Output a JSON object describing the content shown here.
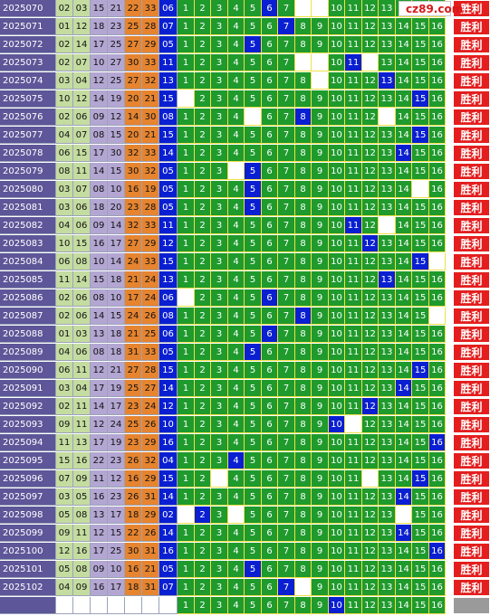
{
  "brand": {
    "logo_text": "cz89.com",
    "logo_color": "#d81818"
  },
  "result_label": "胜利",
  "colors": {
    "period_bg": "#5d5698",
    "hit_blue": "#0a1fd1",
    "green": "#1f9a2d",
    "orange": "#e6842f",
    "lavender": "#b3a6d2",
    "lightgreen": "#c4dca0",
    "result_red": "#e41e1e"
  },
  "grid_numbers": [
    "1",
    "2",
    "3",
    "4",
    "5",
    "6",
    "7",
    "8",
    "9",
    "10",
    "11",
    "12",
    "13",
    "14",
    "15",
    "16"
  ],
  "draws": [
    {
      "period": "2025070",
      "reds": [
        "02",
        "03",
        "15",
        "21",
        "22",
        "33"
      ],
      "blue": "06",
      "blank": [
        8,
        9
      ]
    },
    {
      "period": "2025071",
      "reds": [
        "01",
        "12",
        "18",
        "23",
        "25",
        "28"
      ],
      "blue": "07",
      "blank": []
    },
    {
      "period": "2025072",
      "reds": [
        "02",
        "14",
        "17",
        "25",
        "27",
        "29"
      ],
      "blue": "05",
      "blank": []
    },
    {
      "period": "2025073",
      "reds": [
        "02",
        "07",
        "10",
        "27",
        "30",
        "33"
      ],
      "blue": "11",
      "blank": [
        8,
        9,
        12
      ]
    },
    {
      "period": "2025074",
      "reds": [
        "03",
        "04",
        "12",
        "25",
        "27",
        "32"
      ],
      "blue": "13",
      "blank": [
        9
      ]
    },
    {
      "period": "2025075",
      "reds": [
        "10",
        "12",
        "14",
        "19",
        "20",
        "21"
      ],
      "blue": "15",
      "blank": [
        1
      ]
    },
    {
      "period": "2025076",
      "reds": [
        "02",
        "06",
        "09",
        "12",
        "14",
        "30"
      ],
      "blue": "08",
      "blank": [
        5,
        13
      ]
    },
    {
      "period": "2025077",
      "reds": [
        "04",
        "07",
        "08",
        "15",
        "20",
        "21"
      ],
      "blue": "15",
      "blank": []
    },
    {
      "period": "2025078",
      "reds": [
        "06",
        "15",
        "17",
        "30",
        "32",
        "33"
      ],
      "blue": "14",
      "blank": []
    },
    {
      "period": "2025079",
      "reds": [
        "08",
        "11",
        "14",
        "15",
        "30",
        "32"
      ],
      "blue": "05",
      "blank": [
        4
      ]
    },
    {
      "period": "2025080",
      "reds": [
        "03",
        "07",
        "08",
        "10",
        "16",
        "19"
      ],
      "blue": "05",
      "blank": [
        15
      ]
    },
    {
      "period": "2025081",
      "reds": [
        "03",
        "06",
        "18",
        "20",
        "23",
        "28"
      ],
      "blue": "05",
      "blank": []
    },
    {
      "period": "2025082",
      "reds": [
        "04",
        "06",
        "09",
        "14",
        "32",
        "33"
      ],
      "blue": "11",
      "blank": [
        13
      ]
    },
    {
      "period": "2025083",
      "reds": [
        "10",
        "15",
        "16",
        "17",
        "27",
        "29"
      ],
      "blue": "12",
      "blank": []
    },
    {
      "period": "2025084",
      "reds": [
        "06",
        "08",
        "10",
        "14",
        "24",
        "33"
      ],
      "blue": "15",
      "blank": [
        16
      ]
    },
    {
      "period": "2025085",
      "reds": [
        "11",
        "14",
        "15",
        "18",
        "21",
        "24"
      ],
      "blue": "13",
      "blank": []
    },
    {
      "period": "2025086",
      "reds": [
        "02",
        "06",
        "08",
        "10",
        "17",
        "24"
      ],
      "blue": "06",
      "blank": [
        1
      ]
    },
    {
      "period": "2025087",
      "reds": [
        "02",
        "06",
        "14",
        "15",
        "24",
        "26"
      ],
      "blue": "08",
      "blank": [
        16
      ]
    },
    {
      "period": "2025088",
      "reds": [
        "01",
        "03",
        "13",
        "18",
        "21",
        "25"
      ],
      "blue": "06",
      "blank": []
    },
    {
      "period": "2025089",
      "reds": [
        "04",
        "06",
        "08",
        "18",
        "31",
        "33"
      ],
      "blue": "05",
      "blank": []
    },
    {
      "period": "2025090",
      "reds": [
        "06",
        "11",
        "12",
        "21",
        "27",
        "28"
      ],
      "blue": "15",
      "blank": []
    },
    {
      "period": "2025091",
      "reds": [
        "03",
        "04",
        "17",
        "19",
        "25",
        "27"
      ],
      "blue": "14",
      "blank": []
    },
    {
      "period": "2025092",
      "reds": [
        "02",
        "11",
        "14",
        "17",
        "23",
        "24"
      ],
      "blue": "12",
      "blank": []
    },
    {
      "period": "2025093",
      "reds": [
        "09",
        "11",
        "12",
        "24",
        "25",
        "26"
      ],
      "blue": "10",
      "blank": [
        11
      ]
    },
    {
      "period": "2025094",
      "reds": [
        "11",
        "13",
        "17",
        "19",
        "23",
        "29"
      ],
      "blue": "16",
      "blank": []
    },
    {
      "period": "2025095",
      "reds": [
        "15",
        "16",
        "22",
        "23",
        "26",
        "32"
      ],
      "blue": "04",
      "blank": []
    },
    {
      "period": "2025096",
      "reds": [
        "07",
        "09",
        "11",
        "12",
        "16",
        "29"
      ],
      "blue": "15",
      "blank": [
        3,
        12
      ]
    },
    {
      "period": "2025097",
      "reds": [
        "03",
        "05",
        "16",
        "23",
        "26",
        "31"
      ],
      "blue": "14",
      "blank": []
    },
    {
      "period": "2025098",
      "reds": [
        "05",
        "08",
        "13",
        "17",
        "18",
        "29"
      ],
      "blue": "02",
      "blank": [
        1,
        4,
        14
      ]
    },
    {
      "period": "2025099",
      "reds": [
        "09",
        "11",
        "12",
        "15",
        "22",
        "26"
      ],
      "blue": "14",
      "blank": []
    },
    {
      "period": "2025100",
      "reds": [
        "12",
        "16",
        "17",
        "25",
        "30",
        "31"
      ],
      "blue": "16",
      "blank": []
    },
    {
      "period": "2025101",
      "reds": [
        "05",
        "08",
        "09",
        "10",
        "16",
        "21"
      ],
      "blue": "05",
      "blank": []
    },
    {
      "period": "2025102",
      "reds": [
        "04",
        "09",
        "16",
        "17",
        "18",
        "31"
      ],
      "blue": "07",
      "blank": [
        8
      ]
    }
  ],
  "footer": {
    "period": "",
    "highlight": [
      10
    ],
    "blank": []
  }
}
